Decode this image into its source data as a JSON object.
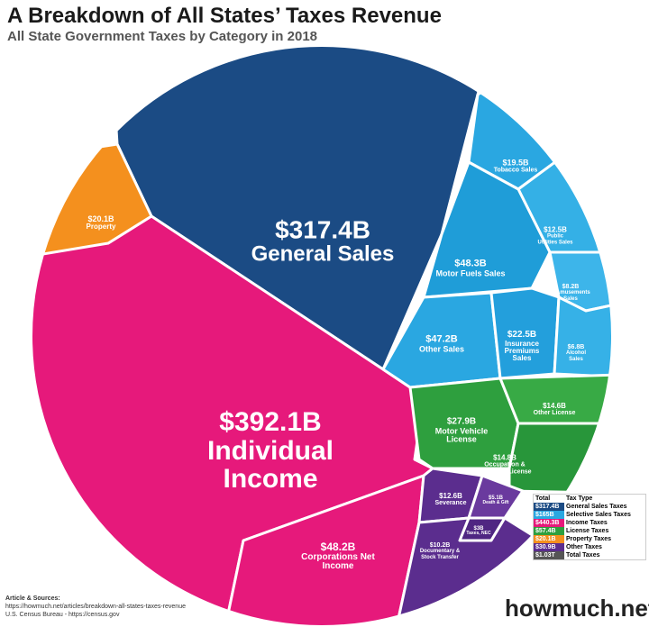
{
  "chart_data": {
    "type": "treemap",
    "title": "A Breakdown of All States’ Taxes Revenue",
    "subtitle": "All State Government Taxes by Category in 2018",
    "cells": [
      {
        "name": "General Sales",
        "value": 317.4,
        "value_label": "$317.4B",
        "color": "#1b4b84"
      },
      {
        "name": "Individual Income",
        "value": 392.1,
        "value_label": "$392.1B",
        "color": "#e6197b"
      },
      {
        "name": "Corporations Net Income",
        "value": 48.2,
        "value_label": "$48.2B",
        "color": "#e6197b"
      },
      {
        "name": "Property",
        "value": 20.1,
        "value_label": "$20.1B",
        "color": "#f4901e"
      },
      {
        "name": "Tobacco Sales",
        "value": 19.5,
        "value_label": "$19.5B",
        "color": "#2aa7e1"
      },
      {
        "name": "Public Utilities Sales",
        "value": 12.5,
        "value_label": "$12.5B",
        "color": "#34b0e6"
      },
      {
        "name": "Motor Fuels Sales",
        "value": 48.3,
        "value_label": "$48.3B",
        "color": "#1f9dd8"
      },
      {
        "name": "Amusements Sales",
        "value": 8.2,
        "value_label": "$8.2B",
        "color": "#3db5ea"
      },
      {
        "name": "Other Sales",
        "value": 47.2,
        "value_label": "$47.2B",
        "color": "#2aa7e1"
      },
      {
        "name": "Insurance Premiums Sales",
        "value": 22.5,
        "value_label": "$22.5B",
        "color": "#239fdc"
      },
      {
        "name": "Alcohol Sales",
        "value": 6.8,
        "value_label": "$6.8B",
        "color": "#36b1e7"
      },
      {
        "name": "Motor Vehicle License",
        "value": 27.9,
        "value_label": "$27.9B",
        "color": "#2e9f3e"
      },
      {
        "name": "Other License",
        "value": 14.6,
        "value_label": "$14.6B",
        "color": "#38aa45"
      },
      {
        "name": "Occupation & Business License",
        "value": 14.8,
        "value_label": "$14.8B",
        "color": "#28963a"
      },
      {
        "name": "Severance",
        "value": 12.6,
        "value_label": "$12.6B",
        "color": "#5b2d8e"
      },
      {
        "name": "Death & Gift",
        "value": 5.1,
        "value_label": "$5.1B",
        "color": "#6a3a9e"
      },
      {
        "name": "Taxes, NEC",
        "value": 3,
        "value_label": "$3B",
        "color": "#4f2682"
      },
      {
        "name": "Documentary & Stock Transfer",
        "value": 10.2,
        "value_label": "$10.2B",
        "color": "#5b2d8e"
      }
    ],
    "legend_header": [
      "Total",
      "Tax Type"
    ],
    "legend": [
      {
        "value": 317.4,
        "label": "$317.4B",
        "name": "General Sales Taxes",
        "color": "#1b4b84"
      },
      {
        "value": 165,
        "label": "$165B",
        "name": "Selective Sales Taxes",
        "color": "#2aa7e1"
      },
      {
        "value": 440.3,
        "label": "$440.3B",
        "name": "Income Taxes",
        "color": "#e6197b"
      },
      {
        "value": 57.4,
        "label": "$57.4B",
        "name": "License Taxes",
        "color": "#2e9f3e"
      },
      {
        "value": 20.1,
        "label": "$20.1B",
        "name": "Property Taxes",
        "color": "#f4901e"
      },
      {
        "value": 30.9,
        "label": "$30.9B",
        "name": "Other Taxes",
        "color": "#5b2d8e"
      },
      {
        "value": 1030,
        "label": "$1.03T",
        "name": "Total Taxes",
        "color": "#555555"
      }
    ],
    "sources": [
      "Article & Sources:",
      "https://howmuch.net/articles/breakdown-all-states-taxes-revenue",
      "U.S. Census Bureau - https://census.gov"
    ],
    "logo": "howmuch.net"
  }
}
